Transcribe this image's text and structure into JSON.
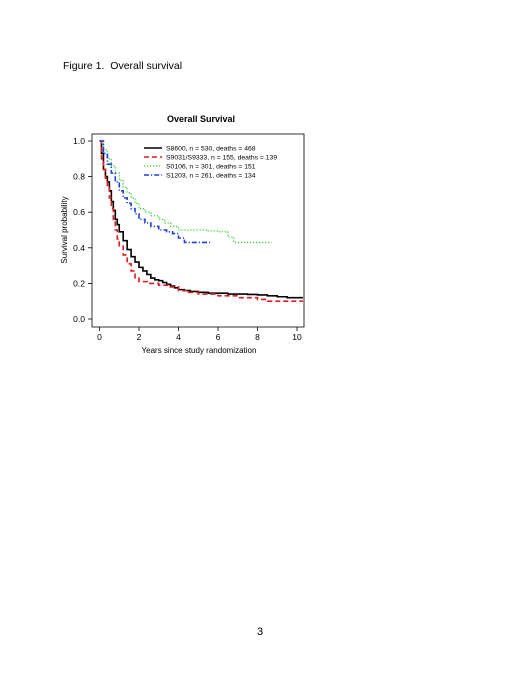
{
  "document": {
    "figure_caption": "Figure 1.  Overall survival",
    "page_number": "3"
  },
  "chart_data": {
    "type": "line",
    "title": "Overall Survival",
    "xlabel": "Years since study randomization",
    "ylabel": "Survival probability",
    "xlim": [
      0,
      10.3
    ],
    "ylim": [
      0,
      1.04
    ],
    "x_ticks": [
      "0",
      "2",
      "4",
      "6",
      "8",
      "10"
    ],
    "y_ticks": [
      "0.0",
      "0.2",
      "0.4",
      "0.6",
      "0.8",
      "1.0"
    ],
    "grid": false,
    "legend_position": "top-right",
    "series": [
      {
        "name": "S8600, n = 530, deaths = 468",
        "color": "#000000",
        "linestyle": "solid",
        "points": [
          [
            0,
            1.0
          ],
          [
            0.1,
            0.93
          ],
          [
            0.2,
            0.84
          ],
          [
            0.3,
            0.8
          ],
          [
            0.4,
            0.77
          ],
          [
            0.5,
            0.72
          ],
          [
            0.6,
            0.66
          ],
          [
            0.7,
            0.61
          ],
          [
            0.8,
            0.56
          ],
          [
            0.9,
            0.53
          ],
          [
            1.0,
            0.49
          ],
          [
            1.2,
            0.44
          ],
          [
            1.4,
            0.39
          ],
          [
            1.6,
            0.35
          ],
          [
            1.8,
            0.32
          ],
          [
            2.0,
            0.29
          ],
          [
            2.2,
            0.27
          ],
          [
            2.4,
            0.25
          ],
          [
            2.6,
            0.23
          ],
          [
            2.8,
            0.22
          ],
          [
            3.0,
            0.215
          ],
          [
            3.2,
            0.205
          ],
          [
            3.4,
            0.195
          ],
          [
            3.6,
            0.185
          ],
          [
            3.8,
            0.175
          ],
          [
            4.0,
            0.165
          ],
          [
            4.3,
            0.16
          ],
          [
            4.6,
            0.155
          ],
          [
            5.0,
            0.15
          ],
          [
            5.5,
            0.145
          ],
          [
            6.0,
            0.145
          ],
          [
            6.5,
            0.14
          ],
          [
            7.0,
            0.14
          ],
          [
            7.5,
            0.138
          ],
          [
            8.0,
            0.135
          ],
          [
            8.5,
            0.13
          ],
          [
            9.0,
            0.125
          ],
          [
            9.5,
            0.12
          ],
          [
            10.3,
            0.12
          ]
        ]
      },
      {
        "name": "S9031/S9333, n = 155, deaths = 139",
        "color": "#e41a1c",
        "linestyle": "dashed",
        "points": [
          [
            0,
            1.0
          ],
          [
            0.1,
            0.9
          ],
          [
            0.2,
            0.84
          ],
          [
            0.3,
            0.79
          ],
          [
            0.4,
            0.74
          ],
          [
            0.5,
            0.68
          ],
          [
            0.6,
            0.62
          ],
          [
            0.7,
            0.55
          ],
          [
            0.8,
            0.5
          ],
          [
            0.9,
            0.45
          ],
          [
            1.0,
            0.41
          ],
          [
            1.2,
            0.36
          ],
          [
            1.4,
            0.31
          ],
          [
            1.6,
            0.27
          ],
          [
            1.8,
            0.23
          ],
          [
            2.0,
            0.21
          ],
          [
            2.5,
            0.2
          ],
          [
            3.0,
            0.19
          ],
          [
            3.5,
            0.18
          ],
          [
            4.0,
            0.16
          ],
          [
            4.5,
            0.15
          ],
          [
            5.0,
            0.14
          ],
          [
            6.0,
            0.13
          ],
          [
            7.0,
            0.12
          ],
          [
            7.5,
            0.12
          ],
          [
            8.0,
            0.11
          ],
          [
            8.5,
            0.1
          ],
          [
            9.0,
            0.1
          ],
          [
            10.3,
            0.1
          ]
        ]
      },
      {
        "name": "S0106, n = 301, deaths = 151",
        "color": "#33cc33",
        "linestyle": "dotted",
        "points": [
          [
            0,
            1.0
          ],
          [
            0.2,
            0.95
          ],
          [
            0.4,
            0.9
          ],
          [
            0.6,
            0.86
          ],
          [
            0.8,
            0.82
          ],
          [
            1.0,
            0.78
          ],
          [
            1.2,
            0.74
          ],
          [
            1.4,
            0.71
          ],
          [
            1.6,
            0.68
          ],
          [
            1.8,
            0.65
          ],
          [
            2.0,
            0.62
          ],
          [
            2.3,
            0.6
          ],
          [
            2.6,
            0.58
          ],
          [
            3.0,
            0.56
          ],
          [
            3.3,
            0.54
          ],
          [
            3.6,
            0.52
          ],
          [
            4.0,
            0.5
          ],
          [
            4.5,
            0.5
          ],
          [
            5.0,
            0.5
          ],
          [
            5.5,
            0.495
          ],
          [
            6.0,
            0.49
          ],
          [
            6.5,
            0.46
          ],
          [
            6.8,
            0.43
          ],
          [
            7.3,
            0.43
          ],
          [
            8.0,
            0.43
          ],
          [
            8.7,
            0.43
          ]
        ]
      },
      {
        "name": "S1203, n = 261, deaths = 134",
        "color": "#1f3fd6",
        "linestyle": "dashdot",
        "points": [
          [
            0,
            1.0
          ],
          [
            0.2,
            0.93
          ],
          [
            0.4,
            0.87
          ],
          [
            0.6,
            0.82
          ],
          [
            0.8,
            0.77
          ],
          [
            1.0,
            0.72
          ],
          [
            1.2,
            0.68
          ],
          [
            1.4,
            0.65
          ],
          [
            1.6,
            0.62
          ],
          [
            1.8,
            0.59
          ],
          [
            2.0,
            0.56
          ],
          [
            2.3,
            0.54
          ],
          [
            2.6,
            0.52
          ],
          [
            3.0,
            0.5
          ],
          [
            3.4,
            0.49
          ],
          [
            3.7,
            0.48
          ],
          [
            4.0,
            0.455
          ],
          [
            4.3,
            0.43
          ],
          [
            5.0,
            0.43
          ],
          [
            5.6,
            0.43
          ]
        ]
      }
    ]
  }
}
